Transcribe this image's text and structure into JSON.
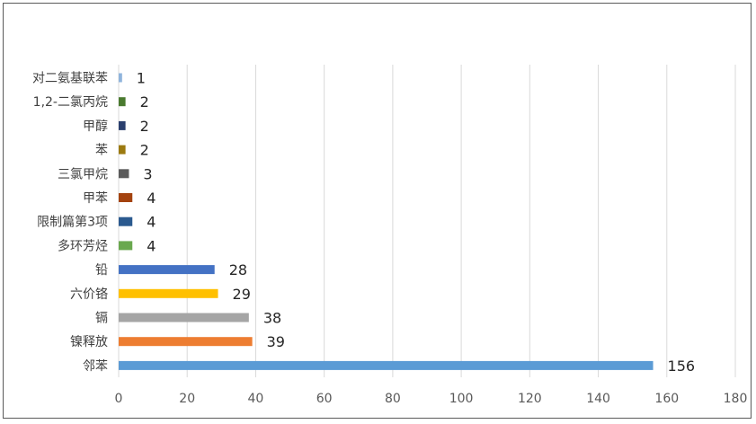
{
  "chart_data": {
    "type": "bar",
    "orientation": "horizontal",
    "categories": [
      "对二氨基联苯",
      "1,2-二氯丙烷",
      "甲醇",
      "苯",
      "三氯甲烷",
      "甲苯",
      "限制篇第3项",
      "多环芳烃",
      "铅",
      "六价铬",
      "镉",
      "镍释放",
      "邻苯"
    ],
    "values": [
      1,
      2,
      2,
      2,
      3,
      4,
      4,
      4,
      28,
      29,
      38,
      39,
      156
    ],
    "colors": [
      "#8fb4dc",
      "#4a7a2f",
      "#2a3f6e",
      "#9c7a10",
      "#5b5b5b",
      "#a4430f",
      "#2b5a8f",
      "#6aa84f",
      "#4472c4",
      "#ffc000",
      "#a5a5a5",
      "#ed7d31",
      "#5b9bd5"
    ],
    "xlim": [
      0,
      180
    ],
    "xticks": [
      0,
      20,
      40,
      60,
      80,
      100,
      120,
      140,
      160,
      180
    ],
    "grid": true,
    "legend": "none",
    "title": ""
  }
}
